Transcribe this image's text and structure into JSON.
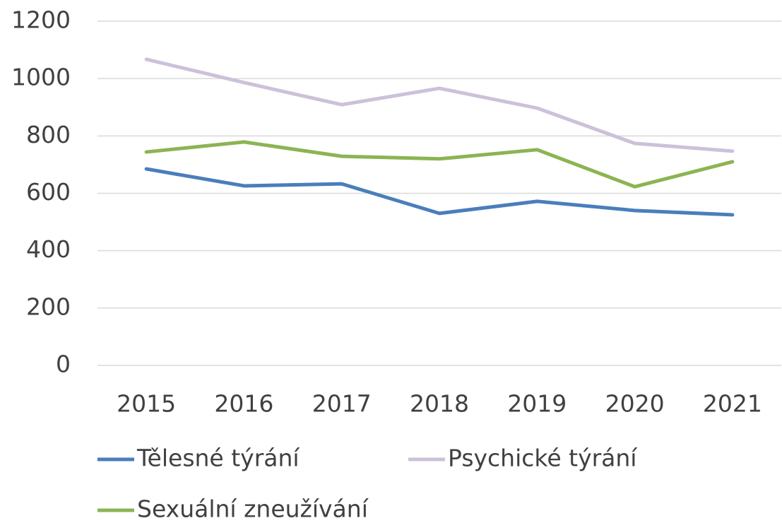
{
  "chart_data": {
    "type": "line",
    "categories": [
      "2015",
      "2016",
      "2017",
      "2018",
      "2019",
      "2020",
      "2021"
    ],
    "series": [
      {
        "name": "Tělesné týrání",
        "color": "#4a7ebb",
        "values": [
          685,
          626,
          633,
          530,
          572,
          540,
          525
        ]
      },
      {
        "name": "Psychické týrání",
        "color": "#ccc1da",
        "values": [
          1067,
          986,
          909,
          966,
          897,
          774,
          747
        ]
      },
      {
        "name": "Sexuální zneužívání",
        "color": "#8cb453",
        "values": [
          744,
          779,
          729,
          720,
          752,
          623,
          710
        ]
      }
    ],
    "ylim": [
      0,
      1200
    ],
    "yticks": [
      0,
      200,
      400,
      600,
      800,
      1000,
      1200
    ],
    "grid": true,
    "legend": "bottom"
  }
}
